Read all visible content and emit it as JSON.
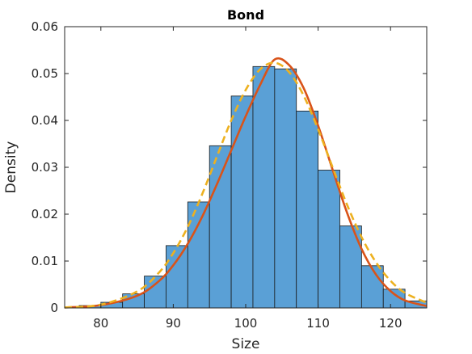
{
  "chart_data": {
    "type": "bar",
    "title": "Bond",
    "xlabel": "Size",
    "ylabel": "Density",
    "xlim": [
      75,
      125
    ],
    "ylim": [
      0,
      0.06
    ],
    "xticks": [
      80,
      90,
      100,
      110,
      120
    ],
    "yticks": [
      0,
      0.01,
      0.02,
      0.03,
      0.04,
      0.05,
      0.06
    ],
    "xtick_labels": [
      "80",
      "90",
      "100",
      "110",
      "120"
    ],
    "ytick_labels": [
      "0",
      "0.01",
      "0.02",
      "0.03",
      "0.04",
      "0.05",
      "0.06"
    ],
    "grid": false,
    "histogram": {
      "bin_edges": [
        77,
        80,
        83,
        86,
        89,
        92,
        95,
        98,
        101,
        104,
        107,
        110,
        113,
        116,
        119,
        122,
        125
      ],
      "values": [
        0.0005,
        0.0012,
        0.003,
        0.0068,
        0.0133,
        0.0226,
        0.0346,
        0.0452,
        0.0515,
        0.051,
        0.042,
        0.0294,
        0.0175,
        0.009,
        0.004,
        0.0015
      ],
      "color": "#5aa0d6"
    },
    "series": [
      {
        "style": "solid",
        "color": "#d95319",
        "x": [
          75,
          80,
          85,
          88,
          90,
          92,
          94,
          96,
          98,
          100,
          102,
          104,
          106,
          108,
          110,
          112,
          114,
          116,
          118,
          120,
          122,
          125
        ],
        "values": [
          0.0001,
          0.0006,
          0.0026,
          0.0057,
          0.0091,
          0.0137,
          0.0195,
          0.0263,
          0.0336,
          0.0409,
          0.0476,
          0.053,
          0.0518,
          0.0469,
          0.0389,
          0.0295,
          0.0203,
          0.0126,
          0.0071,
          0.0036,
          0.0016,
          0.0004
        ]
      },
      {
        "style": "dashed",
        "color": "#edb120",
        "x": [
          75,
          80,
          85,
          88,
          90,
          92,
          94,
          96,
          98,
          100,
          102,
          104,
          106,
          108,
          110,
          112,
          114,
          116,
          118,
          120,
          122,
          125
        ],
        "values": [
          0.0001,
          0.0007,
          0.0035,
          0.0075,
          0.0117,
          0.0173,
          0.0243,
          0.0322,
          0.04,
          0.0465,
          0.0509,
          0.0523,
          0.0503,
          0.0453,
          0.0381,
          0.03,
          0.022,
          0.0151,
          0.0097,
          0.0058,
          0.0032,
          0.0011
        ]
      }
    ]
  }
}
